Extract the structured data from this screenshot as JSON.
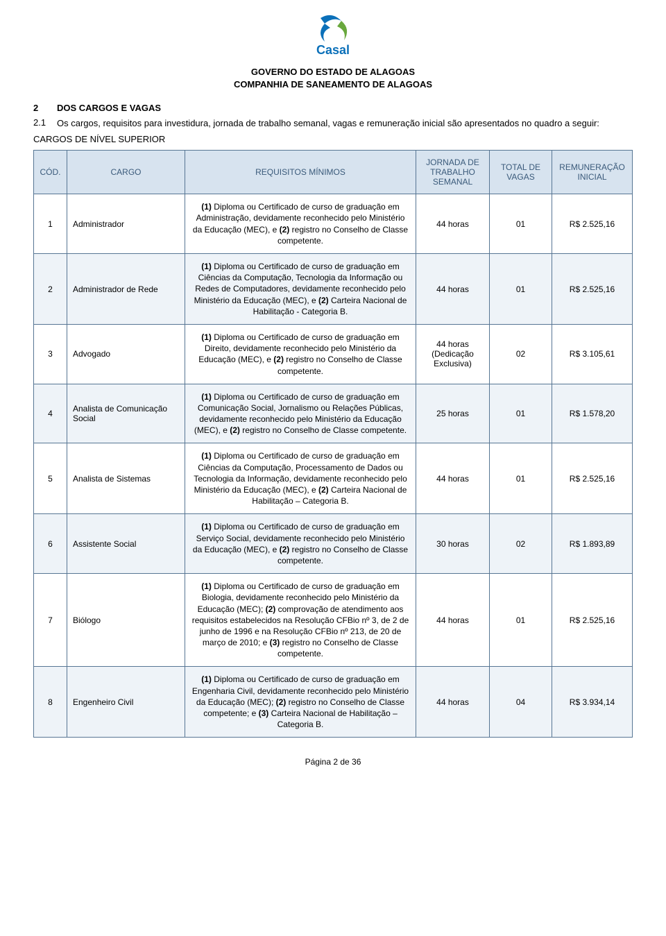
{
  "colors": {
    "border": "#567593",
    "headerBg": "#d7e3ef",
    "headerText": "#3a5a7a",
    "altRowBg": "#eef3f8",
    "pageBg": "#ffffff",
    "text": "#000000",
    "logoBlue": "#0b70b9",
    "logoGreen": "#69a83d"
  },
  "fonts": {
    "body_pt": 12,
    "header_pt": 13,
    "title_pt": 13
  },
  "header": {
    "line1": "GOVERNO DO ESTADO DE ALAGOAS",
    "line2": "COMPANHIA DE SANEAMENTO DE ALAGOAS",
    "logoName": "Casal"
  },
  "section": {
    "number": "2",
    "title": "DOS CARGOS E VAGAS"
  },
  "intro": {
    "number": "2.1",
    "text": "Os cargos, requisitos para investidura, jornada de trabalho semanal, vagas e remuneração inicial são apresentados no quadro a seguir:"
  },
  "table": {
    "caption": "CARGOS DE NÍVEL SUPERIOR",
    "columns": {
      "cod": "CÓD.",
      "cargo": "CARGO",
      "req": "REQUISITOS MÍNIMOS",
      "jornada": "JORNADA DE TRABALHO SEMANAL",
      "vagas": "TOTAL DE VAGAS",
      "remun": "REMUNERAÇÃO INICIAL"
    },
    "rows": [
      {
        "cod": "1",
        "cargo": "Administrador",
        "req_html": "<span class='b'>(1)</span> Diploma ou Certificado de curso de graduação em Administração, devidamente reconhecido pelo Ministério da Educação (MEC), e <span class='b'>(2)</span> registro no Conselho de Classe competente.",
        "jornada": "44 horas",
        "vagas": "01",
        "remun": "R$ 2.525,16"
      },
      {
        "cod": "2",
        "cargo": "Administrador de Rede",
        "req_html": "<span class='b'>(1)</span> Diploma ou Certificado de curso de graduação em Ciências da Computação, Tecnologia da Informação ou Redes de Computadores, devidamente reconhecido pelo Ministério da Educação (MEC), e <span class='b'>(2)</span> Carteira Nacional de Habilitação - Categoria B.",
        "jornada": "44 horas",
        "vagas": "01",
        "remun": "R$ 2.525,16"
      },
      {
        "cod": "3",
        "cargo": "Advogado",
        "req_html": "<span class='b'>(1)</span> Diploma ou Certificado de curso de graduação em Direito, devidamente reconhecido pelo Ministério da Educação (MEC), e <span class='b'>(2)</span> registro no Conselho de Classe competente.",
        "jornada": "44 horas (Dedicação Exclusiva)",
        "vagas": "02",
        "remun": "R$ 3.105,61"
      },
      {
        "cod": "4",
        "cargo": "Analista de Comunicação Social",
        "req_html": "<span class='b'>(1)</span> Diploma ou Certificado de curso de graduação em Comunicação Social, Jornalismo ou Relações Públicas, devidamente reconhecido pelo Ministério da Educação (MEC), e <span class='b'>(2)</span> registro no Conselho de Classe competente.",
        "jornada": "25 horas",
        "vagas": "01",
        "remun": "R$ 1.578,20"
      },
      {
        "cod": "5",
        "cargo": "Analista de Sistemas",
        "req_html": "<span class='b'>(1)</span> Diploma ou Certificado de curso de graduação em Ciências da Computação, Processamento de Dados ou Tecnologia da Informação, devidamente reconhecido pelo Ministério da Educação (MEC), e <span class='b'>(2)</span> Carteira Nacional de Habilitação – Categoria B.",
        "jornada": "44 horas",
        "vagas": "01",
        "remun": "R$ 2.525,16"
      },
      {
        "cod": "6",
        "cargo": "Assistente Social",
        "req_html": "<span class='b'>(1)</span> Diploma ou Certificado de curso de graduação em Serviço Social, devidamente reconhecido pelo Ministério da Educação (MEC), e <span class='b'>(2)</span> registro no Conselho de Classe competente.",
        "jornada": "30 horas",
        "vagas": "02",
        "remun": "R$ 1.893,89"
      },
      {
        "cod": "7",
        "cargo": "Biólogo",
        "req_html": "<span class='b'>(1)</span> Diploma ou Certificado de curso de graduação em Biologia, devidamente reconhecido pelo Ministério da Educação (MEC); <span class='b'>(2)</span> comprovação de atendimento aos requisitos estabelecidos na Resolução CFBio nº 3, de 2 de junho de 1996 e na Resolução CFBio nº 213, de 20 de março de 2010; e <span class='b'>(3)</span> registro no Conselho de Classe competente.",
        "jornada": "44 horas",
        "vagas": "01",
        "remun": "R$ 2.525,16"
      },
      {
        "cod": "8",
        "cargo": "Engenheiro Civil",
        "req_html": "<span class='b'>(1)</span> Diploma ou Certificado de curso de graduação em Engenharia Civil, devidamente reconhecido pelo Ministério da Educação (MEC); <span class='b'>(2)</span> registro no Conselho de Classe competente; e <span class='b'>(3)</span> Carteira Nacional de Habilitação – Categoria B.",
        "jornada": "44 horas",
        "vagas": "04",
        "remun": "R$ 3.934,14"
      }
    ]
  },
  "footer": "Página 2 de 36"
}
